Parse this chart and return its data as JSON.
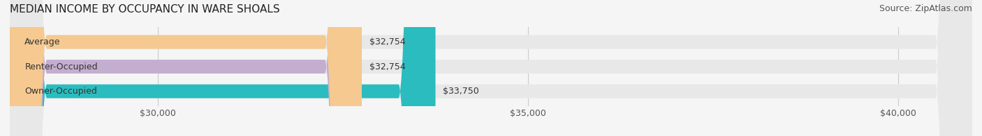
{
  "title": "MEDIAN INCOME BY OCCUPANCY IN WARE SHOALS",
  "source": "Source: ZipAtlas.com",
  "categories": [
    "Owner-Occupied",
    "Renter-Occupied",
    "Average"
  ],
  "values": [
    33750,
    32754,
    32754
  ],
  "bar_colors": [
    "#2BBCBF",
    "#C4AECF",
    "#F5C990"
  ],
  "bar_edge_colors": [
    "#2BBCBF",
    "#C4AECF",
    "#F5C990"
  ],
  "value_labels": [
    "$33,750",
    "$32,754",
    "$32,754"
  ],
  "xlim": [
    28000,
    41000
  ],
  "xticks": [
    30000,
    35000,
    40000
  ],
  "xtick_labels": [
    "$30,000",
    "$35,000",
    "$40,000"
  ],
  "title_fontsize": 11,
  "source_fontsize": 9,
  "label_fontsize": 9,
  "tick_fontsize": 9,
  "bar_height": 0.55,
  "background_color": "#f5f5f5",
  "bar_bg_color": "#e8e8e8",
  "grid_color": "#cccccc"
}
